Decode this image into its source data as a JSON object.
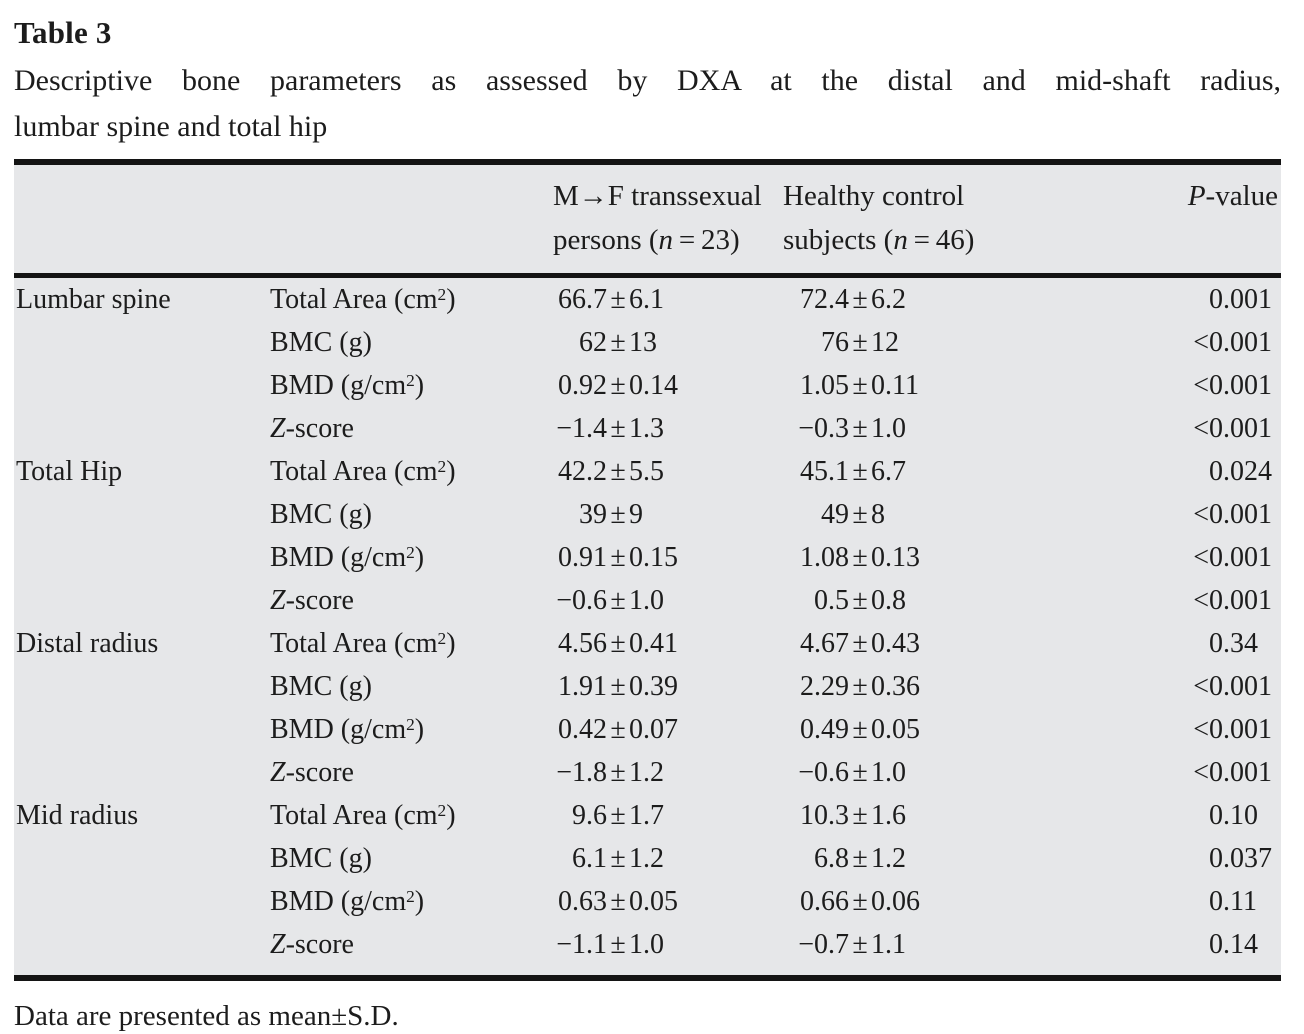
{
  "title": "Table 3",
  "caption": {
    "line1": "Descriptive bone parameters as assessed by DXA at the distal and mid-shaft radius,",
    "line2": "lumbar spine and total hip"
  },
  "table": {
    "header": {
      "col3": {
        "line1": "M→F transsexual",
        "line2": [
          {
            "t": "persons ("
          },
          {
            "t": "n",
            "i": true
          },
          {
            "t": " = 23)"
          }
        ]
      },
      "col4": {
        "line1": "Healthy control",
        "line2": [
          {
            "t": "subjects ("
          },
          {
            "t": "n",
            "i": true
          },
          {
            "t": " = 46)"
          }
        ]
      },
      "col5": [
        {
          "t": "P",
          "i": true
        },
        {
          "t": "-value"
        }
      ]
    },
    "groups": [
      {
        "region": "Lumbar spine",
        "rows": [
          {
            "param": [
              {
                "t": "Total Area (cm"
              },
              {
                "t": "2",
                "sup": true
              },
              {
                "t": ")"
              }
            ],
            "mtf": "66.7±6.1",
            "control": "72.4±6.2",
            "p": "0.001"
          },
          {
            "param": [
              {
                "t": "BMC (g)"
              }
            ],
            "mtf": "62±13",
            "control": "76±12",
            "p": "<0.001"
          },
          {
            "param": [
              {
                "t": "BMD (g/cm"
              },
              {
                "t": "2",
                "sup": true
              },
              {
                "t": ")"
              }
            ],
            "mtf": "0.92±0.14",
            "control": "1.05±0.11",
            "p": "<0.001"
          },
          {
            "param": [
              {
                "t": "Z",
                "i": true
              },
              {
                "t": "-score"
              }
            ],
            "mtf": "−1.4±1.3",
            "control": "−0.3±1.0",
            "p": "<0.001"
          }
        ]
      },
      {
        "region": "Total Hip",
        "rows": [
          {
            "param": [
              {
                "t": "Total Area (cm"
              },
              {
                "t": "2",
                "sup": true
              },
              {
                "t": ")"
              }
            ],
            "mtf": "42.2±5.5",
            "control": "45.1±6.7",
            "p": "0.024"
          },
          {
            "param": [
              {
                "t": "BMC (g)"
              }
            ],
            "mtf": "39±9",
            "control": "49±8",
            "p": "<0.001"
          },
          {
            "param": [
              {
                "t": "BMD (g/cm"
              },
              {
                "t": "2",
                "sup": true
              },
              {
                "t": ")"
              }
            ],
            "mtf": "0.91±0.15",
            "control": "1.08±0.13",
            "p": "<0.001"
          },
          {
            "param": [
              {
                "t": "Z",
                "i": true
              },
              {
                "t": "-score"
              }
            ],
            "mtf": "−0.6±1.0",
            "control": "0.5±0.8",
            "p": "<0.001"
          }
        ]
      },
      {
        "region": "Distal radius",
        "rows": [
          {
            "param": [
              {
                "t": "Total Area (cm"
              },
              {
                "t": "2",
                "sup": true
              },
              {
                "t": ")"
              }
            ],
            "mtf": "4.56±0.41",
            "control": "4.67±0.43",
            "p": "0.34"
          },
          {
            "param": [
              {
                "t": "BMC (g)"
              }
            ],
            "mtf": "1.91±0.39",
            "control": "2.29±0.36",
            "p": "<0.001"
          },
          {
            "param": [
              {
                "t": "BMD (g/cm"
              },
              {
                "t": "2",
                "sup": true
              },
              {
                "t": ")"
              }
            ],
            "mtf": "0.42±0.07",
            "control": "0.49±0.05",
            "p": "<0.001"
          },
          {
            "param": [
              {
                "t": "Z",
                "i": true
              },
              {
                "t": "-score"
              }
            ],
            "mtf": "−1.8±1.2",
            "control": "−0.6±1.0",
            "p": "<0.001"
          }
        ]
      },
      {
        "region": "Mid radius",
        "rows": [
          {
            "param": [
              {
                "t": "Total Area (cm"
              },
              {
                "t": "2",
                "sup": true
              },
              {
                "t": ")"
              }
            ],
            "mtf": "9.6±1.7",
            "control": "10.3±1.6",
            "p": "0.10"
          },
          {
            "param": [
              {
                "t": "BMC (g)"
              }
            ],
            "mtf": "6.1±1.2",
            "control": "6.8±1.2",
            "p": "0.037"
          },
          {
            "param": [
              {
                "t": "BMD (g/cm"
              },
              {
                "t": "2",
                "sup": true
              },
              {
                "t": ")"
              }
            ],
            "mtf": "0.63±0.05",
            "control": "0.66±0.06",
            "p": "0.11"
          },
          {
            "param": [
              {
                "t": "Z",
                "i": true
              },
              {
                "t": "-score"
              }
            ],
            "mtf": "−1.1±1.0",
            "control": "−0.7±1.1",
            "p": "0.14"
          }
        ]
      }
    ]
  },
  "footnote": "Data are presented as mean±S.D.",
  "colors": {
    "table_background": "#e6e7e9",
    "rule": "#141414",
    "text": "#1c1c1c",
    "page_background": "#ffffff"
  }
}
